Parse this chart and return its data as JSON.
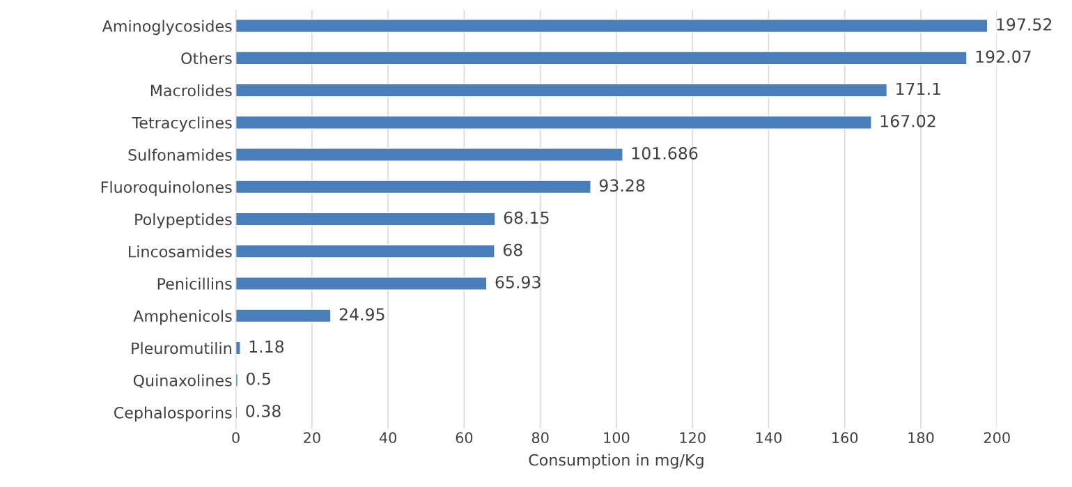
{
  "chart_data": {
    "type": "bar",
    "orientation": "horizontal",
    "xlabel": "Consumption in mg/Kg",
    "categories": [
      "Aminoglycosides",
      "Others",
      "Macrolides",
      "Tetracyclines",
      "Sulfonamides",
      "Fluoroquinolones",
      "Polypeptides",
      "Lincosamides",
      "Penicillins",
      "Amphenicols",
      "Pleuromutilin",
      "Quinaxolines",
      "Cephalosporins"
    ],
    "values": [
      197.52,
      192.07,
      171.1,
      167.02,
      101.686,
      93.28,
      68.15,
      68,
      65.93,
      24.95,
      1.18,
      0.5,
      0.38
    ],
    "color": "#4a7ebb",
    "xlim": [
      0,
      200
    ],
    "xticks": [
      0,
      20,
      40,
      60,
      80,
      100,
      120,
      140,
      160,
      180,
      200
    ],
    "grid": "x",
    "data_labels": true
  }
}
